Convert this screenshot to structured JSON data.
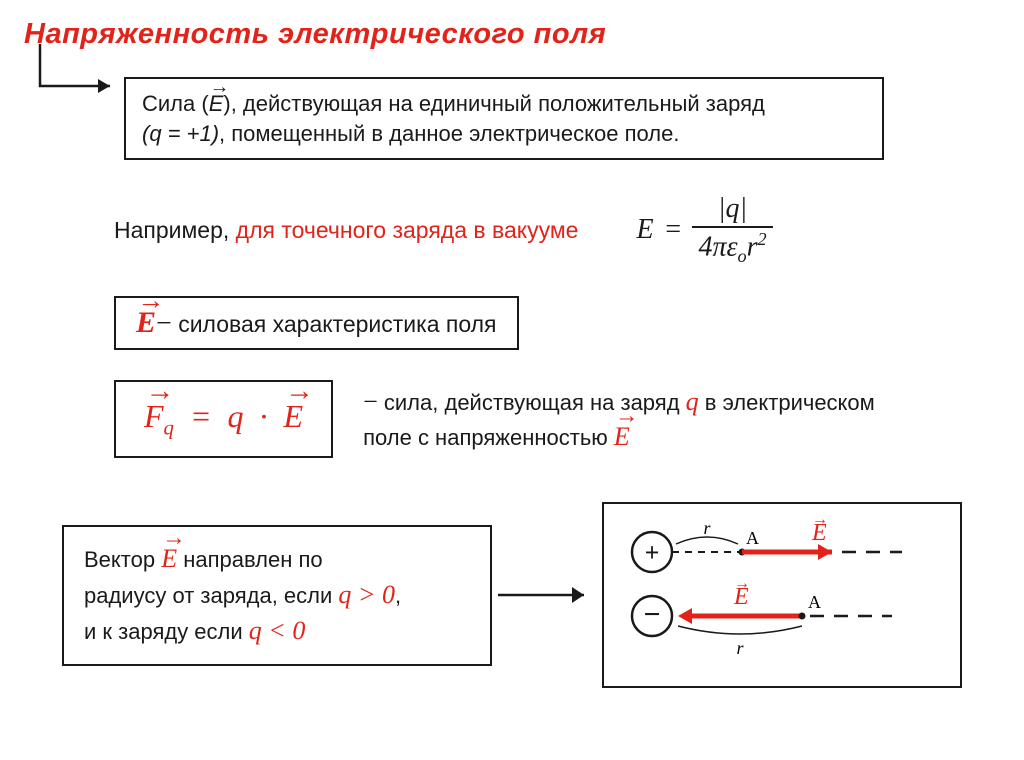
{
  "colors": {
    "accent": "#e2231a",
    "text": "#1a1a1a",
    "bg": "#ffffff",
    "border": "#1a1a1a"
  },
  "typography": {
    "title_fontsize": 29,
    "body_fontsize": 22,
    "formula_fontsize": 28,
    "force_formula_fontsize": 32
  },
  "title": "Напряженность электрического поля",
  "definition": {
    "prefix": "Сила (",
    "symbol": "E",
    "mid": "), действующая на единичный положительный заряд ",
    "charge": "(q = +1)",
    "suffix": ", помещенный в данное электрическое поле."
  },
  "example": {
    "lead": "Например, ",
    "phrase": "для точечного заряда в вакууме",
    "formula": {
      "lhs": "E",
      "eq": "=",
      "num": "|q|",
      "den_4pi": "4π",
      "den_eps": "ε",
      "den_eps_sub": "o",
      "den_r": "r",
      "den_r_sup": "2"
    }
  },
  "characteristic": {
    "symbol": "E",
    "dash": "−",
    "text": "силовая характеристика поля"
  },
  "force": {
    "formula": {
      "F": "F",
      "sub": "q",
      "eq": "=",
      "q": "q",
      "dot": "·",
      "E": "E"
    },
    "dash": "−",
    "desc_1": "сила, действующая на заряд ",
    "desc_q": "q",
    "desc_2": " в электрическом поле с напряженностью ",
    "desc_E": "E"
  },
  "vector_direction": {
    "line1_a": "Вектор ",
    "line1_E": "E",
    "line1_b": " направлен по",
    "line2": "радиусу от заряда, если ",
    "cond1": "q > 0",
    "line3": "и к заряду если ",
    "cond2": "q < 0",
    "comma": ","
  },
  "diagram": {
    "type": "field-direction",
    "r_label": "r",
    "A_label": "A",
    "E_label": "E",
    "plus": "+",
    "minus": "−",
    "colors": {
      "charge_stroke": "#1a1a1a",
      "vector": "#e2231a",
      "dash": "#1a1a1a"
    },
    "layout": {
      "circle_radius": 20,
      "vector_length": 90,
      "row_gap": 64
    }
  }
}
